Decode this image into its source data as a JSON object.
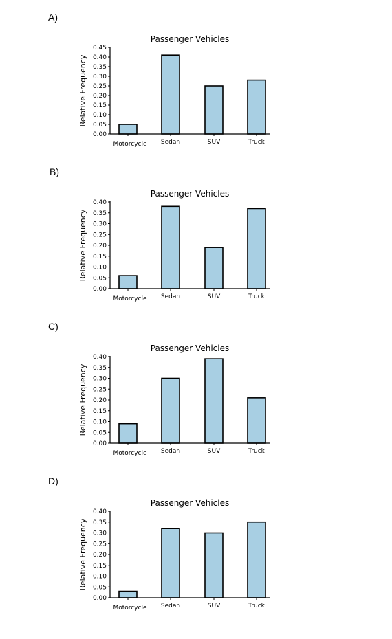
{
  "chart_data": [
    {
      "label": "A)",
      "type": "bar",
      "title": "Passenger Vehicles",
      "ylabel": "Relative Frequency",
      "xlabel": "",
      "categories": [
        "Motorcycle",
        "Sedan",
        "SUV",
        "Truck"
      ],
      "values": [
        0.05,
        0.41,
        0.25,
        0.28
      ],
      "ylim": [
        0,
        0.45
      ],
      "yticks": [
        "0.00",
        "0.05",
        "0.10",
        "0.15",
        "0.20",
        "0.25",
        "0.30",
        "0.35",
        "0.40",
        "0.45"
      ],
      "bar_color": "#a8cfe3",
      "grid": false
    },
    {
      "label": "B)",
      "type": "bar",
      "title": "Passenger Vehicles",
      "ylabel": "Relative Frequency",
      "xlabel": "",
      "categories": [
        "Motorcycle",
        "Sedan",
        "SUV",
        "Truck"
      ],
      "values": [
        0.06,
        0.38,
        0.19,
        0.37
      ],
      "ylim": [
        0,
        0.4
      ],
      "yticks": [
        "0.00",
        "0.05",
        "0.10",
        "0.15",
        "0.20",
        "0.25",
        "0.30",
        "0.35",
        "0.40"
      ],
      "bar_color": "#a8cfe3",
      "grid": false
    },
    {
      "label": "C)",
      "type": "bar",
      "title": "Passenger Vehicles",
      "ylabel": "Relative Frequency",
      "xlabel": "",
      "categories": [
        "Motorcycle",
        "Sedan",
        "SUV",
        "Truck"
      ],
      "values": [
        0.09,
        0.3,
        0.39,
        0.21
      ],
      "ylim": [
        0,
        0.4
      ],
      "yticks": [
        "0.00",
        "0.05",
        "0.10",
        "0.15",
        "0.20",
        "0.25",
        "0.30",
        "0.35",
        "0.40"
      ],
      "bar_color": "#a8cfe3",
      "grid": false
    },
    {
      "label": "D)",
      "type": "bar",
      "title": "Passenger Vehicles",
      "ylabel": "Relative Frequency",
      "xlabel": "",
      "categories": [
        "Motorcycle",
        "Sedan",
        "SUV",
        "Truck"
      ],
      "values": [
        0.03,
        0.32,
        0.3,
        0.35
      ],
      "ylim": [
        0,
        0.4
      ],
      "yticks": [
        "0.00",
        "0.05",
        "0.10",
        "0.15",
        "0.20",
        "0.25",
        "0.30",
        "0.35",
        "0.40"
      ],
      "bar_color": "#a8cfe3",
      "grid": false
    }
  ]
}
